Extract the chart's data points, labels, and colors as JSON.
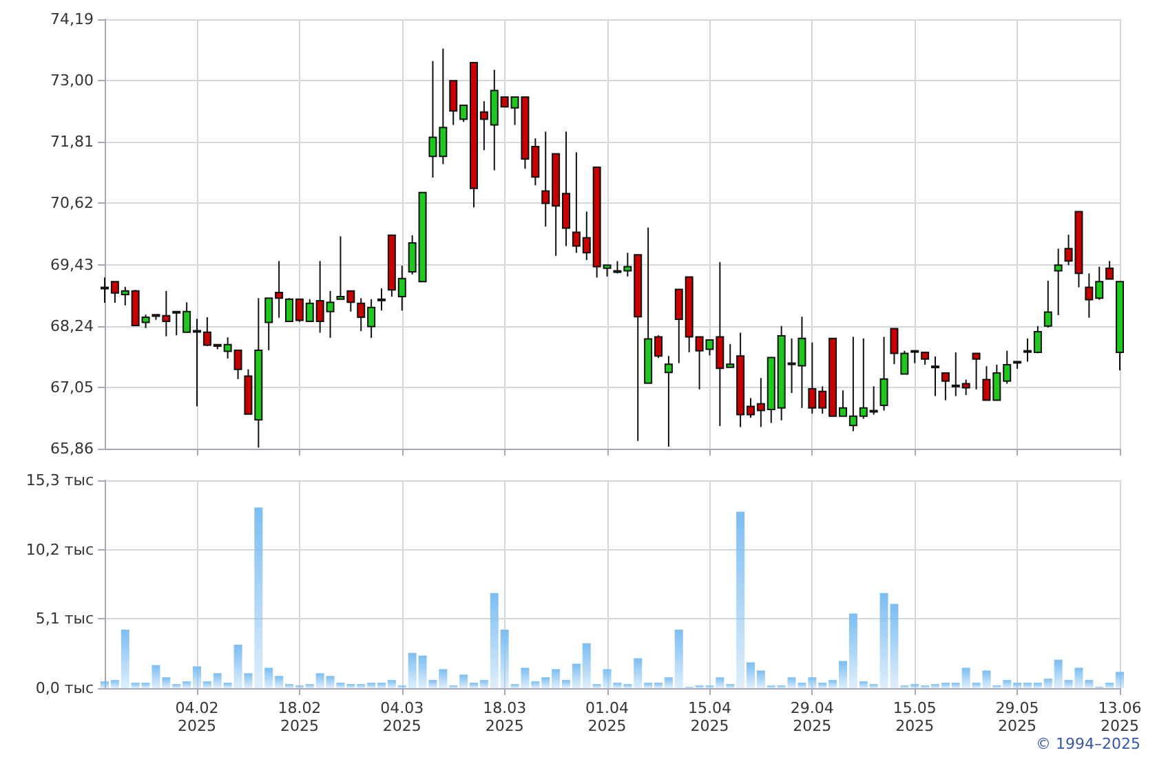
{
  "chart_data": [
    {
      "type": "candlestick",
      "ohlc": [
        [
          68.99,
          69.18,
          68.69,
          68.99
        ],
        [
          69.1,
          69.1,
          68.69,
          68.88
        ],
        [
          68.85,
          69.0,
          68.64,
          68.92
        ],
        [
          68.92,
          68.94,
          68.25,
          68.25
        ],
        [
          68.31,
          68.46,
          68.2,
          68.41
        ],
        [
          68.46,
          68.46,
          68.36,
          68.43
        ],
        [
          68.44,
          68.92,
          68.04,
          68.33
        ],
        [
          68.52,
          68.52,
          68.06,
          68.52
        ],
        [
          68.12,
          68.7,
          68.12,
          68.52
        ],
        [
          68.15,
          68.38,
          66.68,
          68.15
        ],
        [
          68.12,
          68.41,
          67.85,
          67.87
        ],
        [
          67.88,
          67.88,
          67.79,
          67.85
        ],
        [
          67.75,
          68.02,
          67.61,
          67.88
        ],
        [
          67.77,
          67.77,
          67.21,
          67.4
        ],
        [
          67.27,
          67.4,
          66.53,
          66.53
        ],
        [
          66.42,
          68.78,
          65.88,
          67.77
        ],
        [
          68.31,
          68.78,
          67.77,
          68.78
        ],
        [
          68.89,
          69.5,
          68.4,
          68.78
        ],
        [
          68.33,
          68.78,
          68.33,
          68.76
        ],
        [
          68.76,
          68.76,
          68.32,
          68.35
        ],
        [
          68.33,
          68.76,
          68.33,
          68.68
        ],
        [
          68.73,
          69.5,
          68.11,
          68.33
        ],
        [
          68.52,
          68.92,
          68.01,
          68.7
        ],
        [
          68.76,
          69.98,
          68.76,
          68.81
        ],
        [
          68.92,
          68.92,
          68.52,
          68.7
        ],
        [
          68.68,
          68.78,
          68.14,
          68.41
        ],
        [
          68.23,
          68.76,
          68.01,
          68.6
        ],
        [
          68.76,
          68.97,
          68.54,
          68.76
        ],
        [
          70.0,
          70.0,
          68.81,
          68.94
        ],
        [
          68.81,
          69.41,
          68.54,
          69.16
        ],
        [
          69.29,
          70.0,
          69.24,
          69.85
        ],
        [
          69.1,
          70.83,
          69.1,
          70.83
        ],
        [
          71.53,
          73.38,
          71.12,
          71.9
        ],
        [
          71.53,
          73.62,
          71.38,
          72.09
        ],
        [
          73.0,
          73.0,
          72.14,
          72.41
        ],
        [
          72.25,
          72.52,
          72.2,
          72.52
        ],
        [
          73.35,
          73.35,
          70.54,
          70.91
        ],
        [
          72.39,
          72.6,
          71.65,
          72.25
        ],
        [
          72.14,
          73.21,
          71.26,
          72.81
        ],
        [
          72.68,
          72.68,
          72.49,
          72.49
        ],
        [
          72.47,
          72.68,
          72.14,
          72.68
        ],
        [
          72.68,
          72.68,
          71.29,
          71.48
        ],
        [
          71.72,
          71.88,
          70.97,
          71.13
        ],
        [
          70.86,
          72.01,
          70.17,
          70.62
        ],
        [
          71.58,
          71.58,
          69.6,
          70.57
        ],
        [
          70.81,
          72.01,
          69.79,
          70.14
        ],
        [
          70.06,
          71.61,
          69.66,
          69.79
        ],
        [
          69.95,
          70.46,
          69.52,
          69.66
        ],
        [
          71.32,
          71.32,
          69.18,
          69.39
        ],
        [
          69.36,
          69.42,
          69.2,
          69.42
        ],
        [
          69.31,
          69.5,
          69.26,
          69.31
        ],
        [
          69.31,
          69.66,
          69.2,
          69.39
        ],
        [
          69.62,
          69.62,
          66.01,
          68.42
        ],
        [
          67.13,
          70.15,
          67.13,
          67.99
        ],
        [
          68.03,
          68.06,
          67.62,
          67.66
        ],
        [
          67.34,
          67.66,
          65.9,
          67.5
        ],
        [
          68.95,
          68.95,
          67.52,
          68.37
        ],
        [
          69.19,
          69.19,
          67.73,
          68.03
        ],
        [
          68.03,
          68.03,
          67.01,
          67.76
        ],
        [
          67.79,
          67.97,
          67.67,
          67.97
        ],
        [
          68.03,
          69.48,
          66.3,
          67.42
        ],
        [
          67.44,
          67.89,
          67.44,
          67.5
        ],
        [
          67.66,
          68.11,
          66.28,
          66.52
        ],
        [
          66.68,
          66.84,
          66.46,
          66.52
        ],
        [
          66.73,
          67.23,
          66.28,
          66.6
        ],
        [
          66.62,
          67.63,
          66.36,
          67.63
        ],
        [
          66.65,
          68.24,
          66.41,
          68.05
        ],
        [
          67.52,
          68.0,
          66.94,
          67.52
        ],
        [
          67.47,
          68.42,
          66.65,
          68.0
        ],
        [
          67.02,
          67.92,
          66.54,
          66.65
        ],
        [
          66.97,
          67.07,
          66.54,
          66.65
        ],
        [
          68.0,
          68.0,
          66.49,
          66.49
        ],
        [
          66.49,
          66.99,
          66.49,
          66.65
        ],
        [
          66.31,
          68.03,
          66.2,
          66.49
        ],
        [
          66.49,
          68.0,
          66.44,
          66.65
        ],
        [
          66.6,
          67.07,
          66.52,
          66.6
        ],
        [
          66.7,
          68.03,
          66.6,
          67.21
        ],
        [
          68.19,
          68.19,
          67.5,
          67.71
        ],
        [
          67.31,
          67.76,
          67.31,
          67.71
        ],
        [
          67.76,
          67.76,
          67.52,
          67.76
        ],
        [
          67.73,
          67.73,
          67.49,
          67.6
        ],
        [
          67.46,
          67.65,
          66.88,
          67.46
        ],
        [
          67.33,
          67.33,
          66.8,
          67.17
        ],
        [
          67.09,
          67.73,
          66.88,
          67.09
        ],
        [
          67.12,
          67.2,
          66.9,
          67.04
        ],
        [
          67.71,
          67.71,
          67.01,
          67.6
        ],
        [
          67.2,
          67.46,
          66.8,
          66.8
        ],
        [
          66.8,
          67.49,
          66.8,
          67.33
        ],
        [
          67.17,
          67.76,
          67.12,
          67.49
        ],
        [
          67.55,
          67.55,
          67.41,
          67.55
        ],
        [
          67.76,
          68.0,
          67.55,
          67.76
        ],
        [
          67.73,
          68.24,
          67.71,
          68.13
        ],
        [
          68.24,
          69.12,
          68.21,
          68.51
        ],
        [
          69.31,
          69.74,
          68.45,
          69.42
        ],
        [
          69.74,
          70.01,
          69.42,
          69.5
        ],
        [
          70.46,
          70.46,
          68.99,
          69.26
        ],
        [
          68.99,
          69.26,
          68.4,
          68.75
        ],
        [
          68.78,
          69.39,
          68.75,
          69.1
        ],
        [
          69.36,
          69.5,
          69.15,
          69.15
        ],
        [
          67.73,
          69.1,
          67.38,
          69.1
        ]
      ],
      "colors": [
        "#111111",
        "#c80000",
        "#1ec81e",
        "#c80000",
        "#1ec81e",
        "#c80000",
        "#c80000",
        "#111111",
        "#1ec81e",
        "#111111",
        "#c80000",
        "#c80000",
        "#1ec81e",
        "#c80000",
        "#c80000",
        "#1ec81e",
        "#1ec81e",
        "#c80000",
        "#1ec81e",
        "#c80000",
        "#1ec81e",
        "#c80000",
        "#1ec81e",
        "#1ec81e",
        "#c80000",
        "#c80000",
        "#1ec81e",
        "#111111",
        "#c80000",
        "#1ec81e",
        "#1ec81e",
        "#1ec81e",
        "#1ec81e",
        "#1ec81e",
        "#c80000",
        "#1ec81e",
        "#c80000",
        "#c80000",
        "#1ec81e",
        "#c80000",
        "#1ec81e",
        "#c80000",
        "#c80000",
        "#c80000",
        "#c80000",
        "#c80000",
        "#c80000",
        "#c80000",
        "#c80000",
        "#1ec81e",
        "#111111",
        "#1ec81e",
        "#c80000",
        "#1ec81e",
        "#c80000",
        "#1ec81e",
        "#c80000",
        "#c80000",
        "#c80000",
        "#1ec81e",
        "#c80000",
        "#1ec81e",
        "#c80000",
        "#c80000",
        "#c80000",
        "#1ec81e",
        "#1ec81e",
        "#111111",
        "#1ec81e",
        "#c80000",
        "#c80000",
        "#c80000",
        "#1ec81e",
        "#1ec81e",
        "#1ec81e",
        "#111111",
        "#1ec81e",
        "#c80000",
        "#1ec81e",
        "#111111",
        "#c80000",
        "#111111",
        "#c80000",
        "#111111",
        "#c80000",
        "#c80000",
        "#c80000",
        "#1ec81e",
        "#1ec81e",
        "#111111",
        "#111111",
        "#1ec81e",
        "#1ec81e",
        "#1ec81e",
        "#c80000",
        "#c80000",
        "#c80000",
        "#1ec81e",
        "#c80000",
        "#1ec81e"
      ],
      "ylim": [
        65.86,
        74.19
      ],
      "yticks": [
        {
          "value": 65.86,
          "label": "65,86"
        },
        {
          "value": 67.05,
          "label": "67,05"
        },
        {
          "value": 68.24,
          "label": "68,24"
        },
        {
          "value": 69.43,
          "label": "69,43"
        },
        {
          "value": 70.62,
          "label": "70,62"
        },
        {
          "value": 71.81,
          "label": "71,81"
        },
        {
          "value": 73.0,
          "label": "73,00"
        },
        {
          "value": 74.19,
          "label": "74,19"
        }
      ],
      "grid": true,
      "tick_labels": "y"
    },
    {
      "type": "bar",
      "categories": [
        null,
        null,
        null,
        null,
        null,
        null,
        null,
        null,
        null,
        "04.02\n2025",
        null,
        null,
        null,
        null,
        null,
        null,
        null,
        null,
        null,
        "18.02\n2025",
        null,
        null,
        null,
        null,
        null,
        null,
        null,
        null,
        null,
        "04.03\n2025",
        null,
        null,
        null,
        null,
        null,
        null,
        null,
        null,
        null,
        "18.03\n2025",
        null,
        null,
        null,
        null,
        null,
        null,
        null,
        null,
        null,
        "01.04\n2025",
        null,
        null,
        null,
        null,
        null,
        null,
        null,
        null,
        null,
        "15.04\n2025",
        null,
        null,
        null,
        null,
        null,
        null,
        null,
        null,
        null,
        "29.04\n2025",
        null,
        null,
        null,
        null,
        null,
        null,
        null,
        null,
        null,
        "15.05\n2025",
        null,
        null,
        null,
        null,
        null,
        null,
        null,
        null,
        null,
        "29.05\n2025",
        null,
        null,
        null,
        null,
        null,
        null,
        null,
        null,
        null,
        "13.06\n2025"
      ],
      "values": [
        0.5,
        0.6,
        4.3,
        0.4,
        0.4,
        1.7,
        0.8,
        0.3,
        0.5,
        1.6,
        0.5,
        1.1,
        0.4,
        3.2,
        1.1,
        13.3,
        1.5,
        0.9,
        0.3,
        0.2,
        0.3,
        1.1,
        0.9,
        0.4,
        0.3,
        0.3,
        0.4,
        0.4,
        0.6,
        0.2,
        2.6,
        2.4,
        0.6,
        1.4,
        0.2,
        1.0,
        0.4,
        0.6,
        7.0,
        4.3,
        0.3,
        1.5,
        0.5,
        0.8,
        1.4,
        0.6,
        1.8,
        3.3,
        0.3,
        1.4,
        0.4,
        0.3,
        2.2,
        0.4,
        0.4,
        0.8,
        4.3,
        0.1,
        0.2,
        0.2,
        0.8,
        0.3,
        13.0,
        1.9,
        1.3,
        0.2,
        0.2,
        0.8,
        0.4,
        0.8,
        0.4,
        0.6,
        2.0,
        5.5,
        0.5,
        0.3,
        7.0,
        6.2,
        0.2,
        0.3,
        0.2,
        0.3,
        0.4,
        0.4,
        1.5,
        0.4,
        1.3,
        0.2,
        0.6,
        0.4,
        0.4,
        0.4,
        0.7,
        2.1,
        0.6,
        1.5,
        0.6,
        0.1,
        0.4,
        1.2
      ],
      "color": "#7cbdf2",
      "ylim": [
        0,
        15.3
      ],
      "yticks": [
        {
          "value": 0,
          "label": "0,0 тыс"
        },
        {
          "value": 5.1,
          "label": "5,1 тыс"
        },
        {
          "value": 10.2,
          "label": "10,2 тыс"
        },
        {
          "value": 15.3,
          "label": "15,3 тыс"
        }
      ],
      "grid": true,
      "annotations": [
        "© 1994–2025"
      ]
    }
  ]
}
